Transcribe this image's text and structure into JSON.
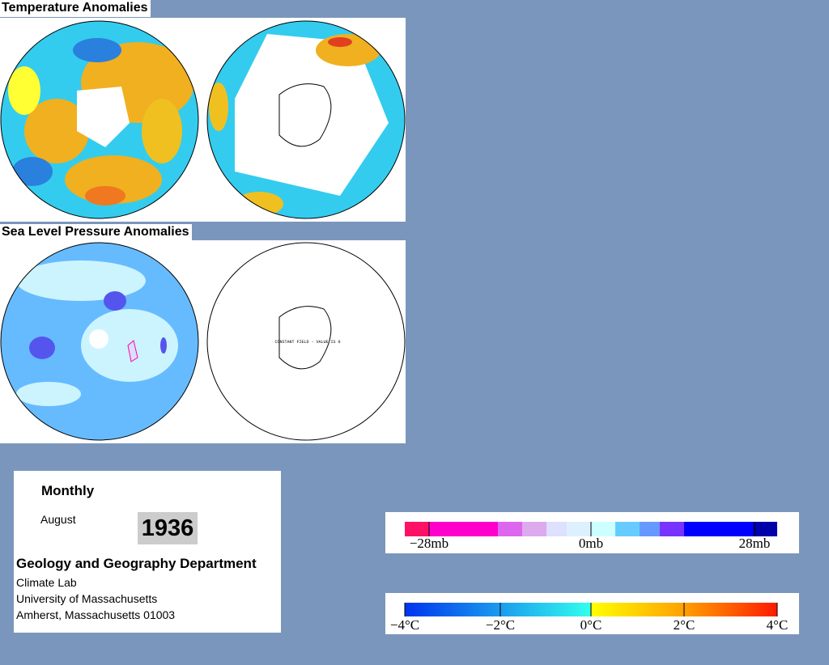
{
  "temperature_panel": {
    "title": "Temperature Anomalies"
  },
  "pressure_panel": {
    "title": "Sea Level Pressure Anomalies",
    "note": "CONSTANT FIELD - VALUE IS 0"
  },
  "info": {
    "period": "Monthly",
    "month": "August",
    "year": "1936",
    "department": "Geology and Geography Department",
    "address_lines": [
      "Climate Lab",
      "University of Massachusetts",
      "Amherst, Massachusetts 01003"
    ]
  },
  "pressure_legend": {
    "labels": [
      "−28mb",
      "0mb",
      "28mb"
    ]
  },
  "temperature_legend": {
    "labels": [
      "−4°C",
      "−2°C",
      "0°C",
      "2°C",
      "4°C"
    ]
  }
}
